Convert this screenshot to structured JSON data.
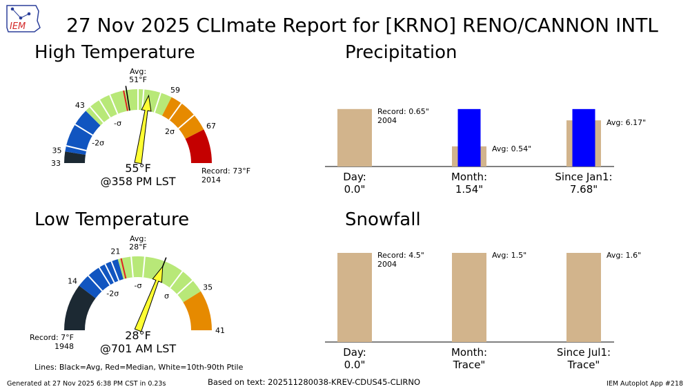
{
  "title": "27 Nov 2025 CLImate Report for [KRNO] RENO/CANNON INTL",
  "logo_text": "IEM",
  "footer": {
    "generated": "Generated at 27 Nov 2025 6:38 PM CST in 0.23s",
    "source": "Based on text: 202511280038-KREV-CDUS45-CLIRNO",
    "app": "IEM Autoplot App #218"
  },
  "lines_note": "Lines: Black=Avg, Red=Median, White=10th-90th Ptile",
  "colors": {
    "below_2sigma": "#1c2933",
    "below_1sigma": "#1155c0",
    "near_normal": "#b8e878",
    "above_1sigma": "#e68a00",
    "above_2sigma": "#c40000",
    "needle": "#ffff33",
    "bar_avg": "#d2b48c",
    "bar_obs": "#0000ff"
  },
  "chart_data": [
    {
      "type": "gauge",
      "title": "High Temperature",
      "range": [
        33,
        73
      ],
      "value": 55,
      "value_label": "55°F",
      "time_label": "@358 PM LST",
      "avg": 51,
      "avg_label": "Avg:\n51°F",
      "median": 50.5,
      "record_label": "Record: 73°F\n2014",
      "ticks": [
        {
          "value": 33,
          "label": "33"
        },
        {
          "value": 35,
          "label": "35"
        },
        {
          "value": 43,
          "label": "43"
        },
        {
          "value": 59,
          "label": "59"
        },
        {
          "value": 67,
          "label": "67"
        }
      ],
      "sigma_labels": [
        {
          "value": 39,
          "label": "-2σ"
        },
        {
          "value": 47,
          "label": "-σ"
        },
        {
          "value": 55,
          "label": "σ"
        },
        {
          "value": 63,
          "label": "2σ"
        }
      ],
      "bands": [
        {
          "from": 33,
          "to": 35,
          "color": "#1c2933"
        },
        {
          "from": 35,
          "to": 43,
          "color": "#1155c0"
        },
        {
          "from": 43,
          "to": 59,
          "color": "#b8e878"
        },
        {
          "from": 59,
          "to": 67,
          "color": "#e68a00"
        },
        {
          "from": 67,
          "to": 73,
          "color": "#c40000"
        }
      ],
      "percentile_lines": [
        36,
        40,
        44,
        46,
        48,
        53,
        54,
        57,
        61,
        64
      ]
    },
    {
      "type": "gauge",
      "title": "Low Temperature",
      "range": [
        7,
        41
      ],
      "value": 28,
      "value_label": "28°F",
      "time_label": "@701 AM LST",
      "avg": 28,
      "avg_label": "Avg:\n28°F",
      "median": 21.5,
      "record_label": "Record: 7°F\n1948",
      "ticks": [
        {
          "value": 14,
          "label": "14"
        },
        {
          "value": 21,
          "label": "21"
        },
        {
          "value": 35,
          "label": "35"
        },
        {
          "value": 41,
          "label": "41"
        }
      ],
      "sigma_labels": [
        {
          "value": 17.5,
          "label": "-2σ"
        },
        {
          "value": 24,
          "label": "-σ"
        },
        {
          "value": 31.5,
          "label": "σ"
        }
      ],
      "bands": [
        {
          "from": 7,
          "to": 14,
          "color": "#1c2933"
        },
        {
          "from": 14,
          "to": 21,
          "color": "#1155c0"
        },
        {
          "from": 21,
          "to": 35,
          "color": "#b8e878"
        },
        {
          "from": 35,
          "to": 41,
          "color": "#e68a00"
        }
      ],
      "percentile_lines": [
        16,
        18,
        19,
        20,
        23,
        25,
        31,
        33
      ]
    },
    {
      "type": "bar",
      "title": "Precipitation",
      "ylim": [
        0,
        0.65
      ],
      "groups": [
        {
          "label": "Day:\n0.0\"",
          "avg": 0.65,
          "obs": 0.0,
          "scale": 1.0,
          "annotation": "Record: 0.65\"\n2004"
        },
        {
          "label": "Month:\n1.54\"",
          "avg": 0.54,
          "obs": 1.54,
          "scale": 2.37,
          "annotation": "Avg: 0.54\""
        },
        {
          "label": "Since Jan1:\n7.68\"",
          "avg": 6.17,
          "obs": 7.68,
          "scale": 11.82,
          "annotation": "Avg: 6.17\""
        }
      ]
    },
    {
      "type": "bar",
      "title": "Snowfall",
      "ylim": [
        0,
        4.5
      ],
      "groups": [
        {
          "label": "Day:\n0.0\"",
          "avg": 4.5,
          "obs": 0.0,
          "scale": 4.5,
          "annotation": "Record: 4.5\"\n2004"
        },
        {
          "label": "Month:\nTrace\"",
          "avg": 1.5,
          "obs": 0.0,
          "scale": 1.5,
          "annotation": "Avg: 1.5\""
        },
        {
          "label": "Since Jul1:\nTrace\"",
          "avg": 1.6,
          "obs": 0.0,
          "scale": 1.6,
          "annotation": "Avg: 1.6\""
        }
      ]
    }
  ]
}
